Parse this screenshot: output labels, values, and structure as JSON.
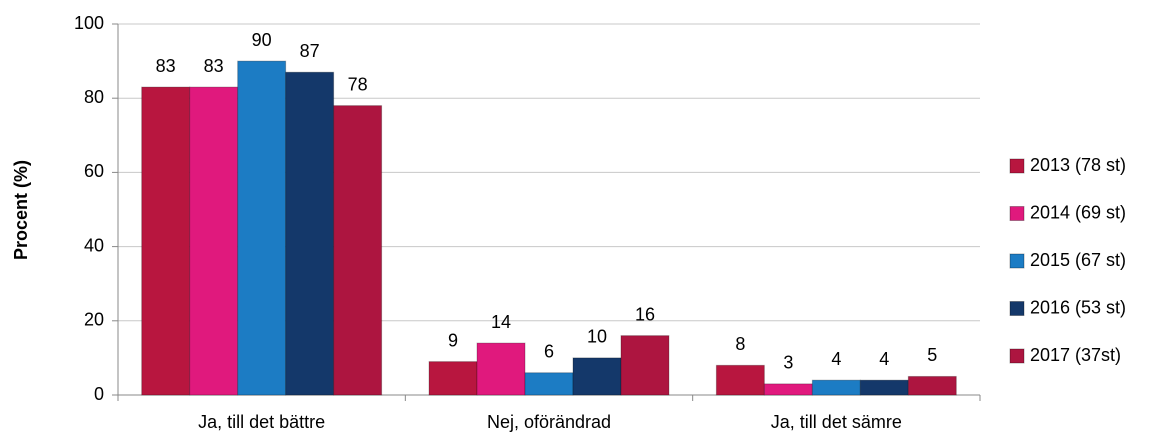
{
  "chart_data": {
    "type": "bar",
    "ylabel": "Procent (%)",
    "categories": [
      "Ja, till det bättre",
      "Nej, oförändrad",
      "Ja, till det sämre"
    ],
    "series": [
      {
        "name": "2013 (78 st)",
        "color": "#b8163f",
        "values": [
          83,
          9,
          8
        ]
      },
      {
        "name": "2014 (69 st)",
        "color": "#e0197d",
        "values": [
          83,
          14,
          3
        ]
      },
      {
        "name": "2015 (67 st)",
        "color": "#1c7cc4",
        "values": [
          90,
          6,
          4
        ]
      },
      {
        "name": "2016 (53 st)",
        "color": "#14386a",
        "values": [
          87,
          10,
          4
        ]
      },
      {
        "name": "2017 (37st)",
        "color": "#ad1540",
        "values": [
          78,
          16,
          5
        ]
      }
    ],
    "ylim": [
      0,
      100
    ],
    "yticks": [
      0,
      20,
      40,
      60,
      80,
      100
    ],
    "grid": true,
    "legend": "right"
  }
}
